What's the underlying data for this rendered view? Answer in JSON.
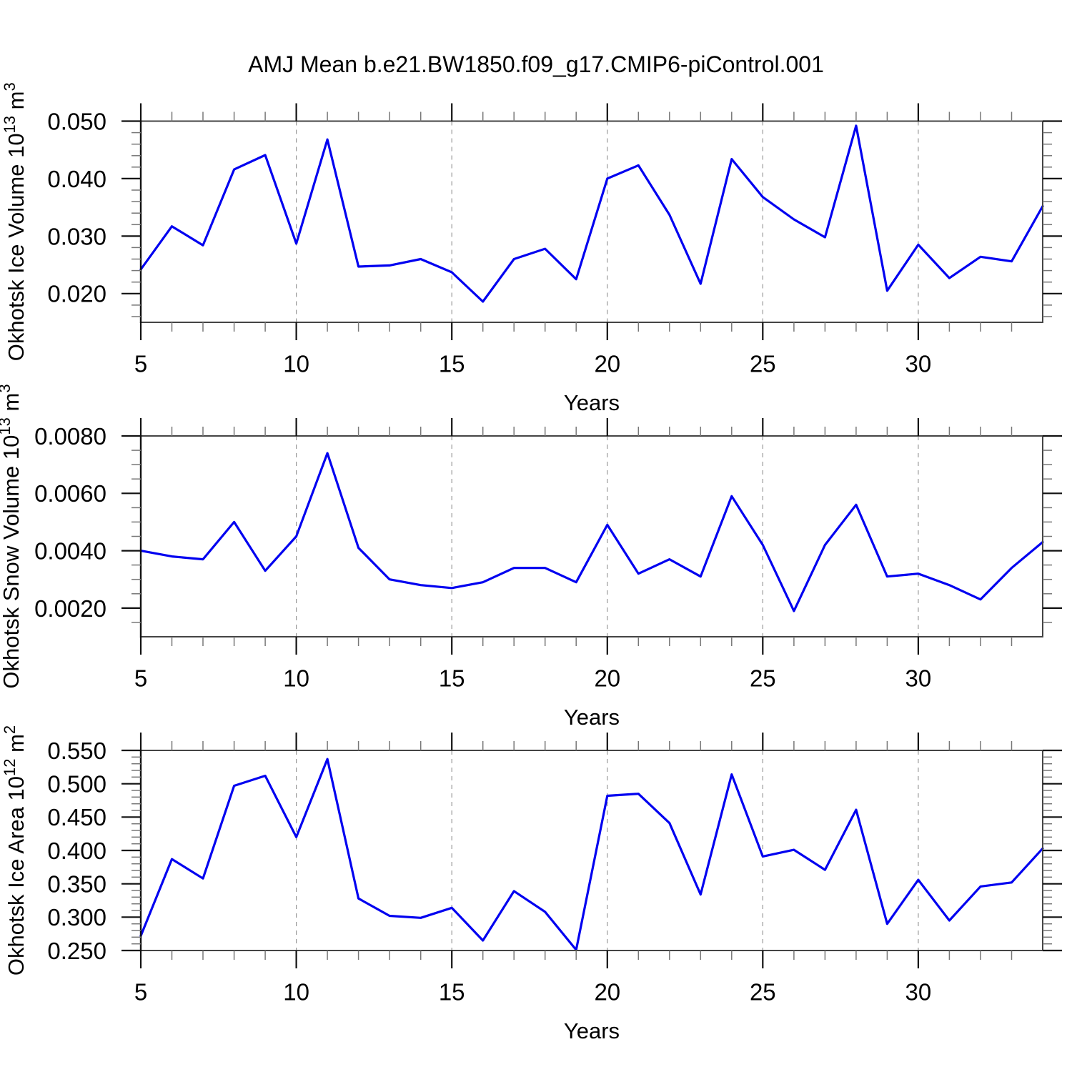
{
  "title": "AMJ Mean b.e21.BW1850.f09_g17.CMIP6-piControl.001",
  "style": {
    "line_color": "#0000f0",
    "background": "#ffffff",
    "frame_color": "#444444",
    "spine_color": "#111111",
    "major_tick_color": "#111111",
    "minor_tick_color": "#777777",
    "grid_color": "#999999"
  },
  "chart_data": [
    {
      "type": "line",
      "name": "okhotsk-ice-volume",
      "ylabel": "Okhotsk Ice Volume 10^13 m^3",
      "ylabel_segments": [
        [
          "t",
          "Okhotsk Ice Volume 10"
        ],
        [
          "s",
          "13"
        ],
        [
          "t",
          " m"
        ],
        [
          "s",
          "3"
        ]
      ],
      "xlabel": "Years",
      "x": [
        5,
        6,
        7,
        8,
        9,
        10,
        11,
        12,
        13,
        14,
        15,
        16,
        17,
        18,
        19,
        20,
        21,
        22,
        23,
        24,
        25,
        26,
        27,
        28,
        29,
        30,
        31,
        32,
        33,
        34
      ],
      "values": [
        0.0242,
        0.0317,
        0.0284,
        0.0416,
        0.0441,
        0.0287,
        0.0468,
        0.0247,
        0.0249,
        0.026,
        0.0237,
        0.0186,
        0.026,
        0.0278,
        0.0225,
        0.04,
        0.0423,
        0.0337,
        0.0217,
        0.0434,
        0.0368,
        0.0329,
        0.0298,
        0.0492,
        0.0205,
        0.0285,
        0.0227,
        0.0264,
        0.0256,
        0.0352
      ],
      "xlim": [
        5,
        34
      ],
      "ylim": [
        0.015,
        0.05
      ],
      "xticks": [
        5,
        10,
        15,
        20,
        25,
        30
      ],
      "xtick_labels": [
        "5",
        "10",
        "15",
        "20",
        "25",
        "30"
      ],
      "x_minor_step": 1,
      "yticks": [
        0.02,
        0.03,
        0.04,
        0.05
      ],
      "ytick_labels": [
        "0.020",
        "0.030",
        "0.040",
        "0.050"
      ],
      "y_minor_step": 0.002,
      "grid_x": [
        10,
        15,
        20,
        25,
        30
      ],
      "grid": "vertical-dashed"
    },
    {
      "type": "line",
      "name": "okhotsk-snow-volume",
      "ylabel": "Okhotsk Snow Volume 10^13 m^3",
      "ylabel_segments": [
        [
          "t",
          "Okhotsk Snow Volume 10"
        ],
        [
          "s",
          "13"
        ],
        [
          "t",
          " m"
        ],
        [
          "s",
          "3"
        ]
      ],
      "xlabel": "Years",
      "x": [
        5,
        6,
        7,
        8,
        9,
        10,
        11,
        12,
        13,
        14,
        15,
        16,
        17,
        18,
        19,
        20,
        21,
        22,
        23,
        24,
        25,
        26,
        27,
        28,
        29,
        30,
        31,
        32,
        33,
        34
      ],
      "values": [
        0.004,
        0.0038,
        0.0037,
        0.005,
        0.0033,
        0.0045,
        0.0074,
        0.0041,
        0.003,
        0.0028,
        0.0027,
        0.0029,
        0.0034,
        0.0034,
        0.0029,
        0.0049,
        0.0032,
        0.0037,
        0.0031,
        0.0059,
        0.0042,
        0.0019,
        0.0042,
        0.0056,
        0.0031,
        0.0032,
        0.0028,
        0.0023,
        0.0034,
        0.0043
      ],
      "xlim": [
        5,
        34
      ],
      "ylim": [
        0.001,
        0.008
      ],
      "xticks": [
        5,
        10,
        15,
        20,
        25,
        30
      ],
      "xtick_labels": [
        "5",
        "10",
        "15",
        "20",
        "25",
        "30"
      ],
      "x_minor_step": 1,
      "yticks": [
        0.002,
        0.004,
        0.006,
        0.008
      ],
      "ytick_labels": [
        "0.0020",
        "0.0040",
        "0.0060",
        "0.0080"
      ],
      "y_minor_step": 0.0005,
      "grid_x": [
        10,
        15,
        20,
        25,
        30
      ],
      "grid": "vertical-dashed"
    },
    {
      "type": "line",
      "name": "okhotsk-ice-area",
      "ylabel": "Okhotsk Ice Area 10^12 m^2",
      "ylabel_segments": [
        [
          "t",
          "Okhotsk Ice Area 10"
        ],
        [
          "s",
          "12"
        ],
        [
          "t",
          " m"
        ],
        [
          "s",
          "2"
        ]
      ],
      "xlabel": "Years",
      "x": [
        5,
        6,
        7,
        8,
        9,
        10,
        11,
        12,
        13,
        14,
        15,
        16,
        17,
        18,
        19,
        20,
        21,
        22,
        23,
        24,
        25,
        26,
        27,
        28,
        29,
        30,
        31,
        32,
        33,
        34
      ],
      "values": [
        0.272,
        0.387,
        0.358,
        0.497,
        0.512,
        0.42,
        0.537,
        0.328,
        0.302,
        0.299,
        0.314,
        0.265,
        0.339,
        0.308,
        0.251,
        0.482,
        0.485,
        0.441,
        0.334,
        0.514,
        0.391,
        0.401,
        0.371,
        0.461,
        0.29,
        0.356,
        0.295,
        0.346,
        0.352,
        0.403
      ],
      "xlim": [
        5,
        34
      ],
      "ylim": [
        0.25,
        0.55
      ],
      "xticks": [
        5,
        10,
        15,
        20,
        25,
        30
      ],
      "xtick_labels": [
        "5",
        "10",
        "15",
        "20",
        "25",
        "30"
      ],
      "x_minor_step": 1,
      "yticks": [
        0.25,
        0.3,
        0.35,
        0.4,
        0.45,
        0.5,
        0.55
      ],
      "ytick_labels": [
        "0.250",
        "0.300",
        "0.350",
        "0.400",
        "0.450",
        "0.500",
        "0.550"
      ],
      "y_minor_step": 0.01,
      "grid_x": [
        10,
        15,
        20,
        25,
        30
      ],
      "grid": "vertical-dashed"
    }
  ]
}
